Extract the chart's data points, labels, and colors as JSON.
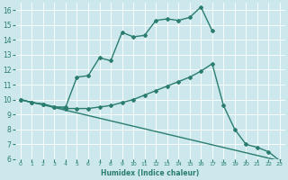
{
  "xlabel": "Humidex (Indice chaleur)",
  "bg_color": "#cce8ec",
  "line_color": "#2a7d6f",
  "xlim": [
    -0.5,
    23.5
  ],
  "ylim": [
    6,
    16.5
  ],
  "xticks": [
    0,
    1,
    2,
    3,
    4,
    5,
    6,
    7,
    8,
    9,
    10,
    11,
    12,
    13,
    14,
    15,
    16,
    17,
    18,
    19,
    20,
    21,
    22,
    23
  ],
  "yticks": [
    6,
    7,
    8,
    9,
    10,
    11,
    12,
    13,
    14,
    15,
    16
  ],
  "lines": [
    {
      "x": [
        0,
        1,
        2,
        3,
        4,
        5,
        6,
        7,
        8,
        9,
        10,
        11,
        12,
        13,
        14,
        15,
        16,
        17
      ],
      "y": [
        10.0,
        9.8,
        9.7,
        9.5,
        9.5,
        11.5,
        11.6,
        12.8,
        12.6,
        14.5,
        14.2,
        14.3,
        15.3,
        15.4,
        15.3,
        15.5,
        16.2,
        14.6
      ],
      "marker": "D",
      "markersize": 2.0,
      "linewidth": 1.0
    },
    {
      "x": [
        0,
        23
      ],
      "y": [
        10.0,
        5.9
      ],
      "marker": null,
      "markersize": 0,
      "linewidth": 1.0
    },
    {
      "x": [
        0,
        1,
        2,
        3,
        4,
        5,
        6,
        7,
        8,
        9,
        10,
        11,
        12,
        13,
        14,
        15,
        16,
        17,
        18,
        19,
        20,
        21,
        22,
        23
      ],
      "y": [
        10.0,
        9.8,
        9.7,
        9.5,
        9.4,
        9.4,
        9.4,
        9.5,
        9.6,
        9.8,
        10.0,
        10.3,
        10.6,
        10.9,
        11.2,
        11.5,
        11.9,
        12.4,
        9.6,
        8.0,
        7.0,
        6.8,
        6.5,
        5.9
      ],
      "marker": "D",
      "markersize": 2.0,
      "linewidth": 1.0
    }
  ]
}
